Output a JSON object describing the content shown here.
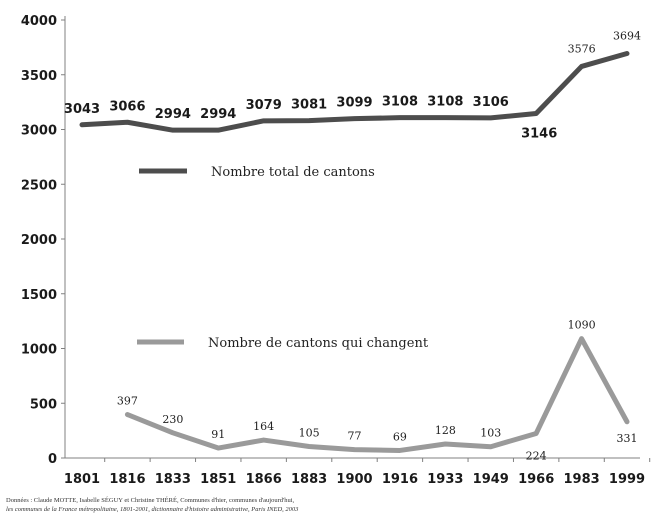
{
  "chart_data": {
    "type": "line",
    "x": [
      "1801",
      "1816",
      "1833",
      "1851",
      "1866",
      "1883",
      "1900",
      "1916",
      "1933",
      "1949",
      "1966",
      "1983",
      "1999"
    ],
    "series": [
      {
        "name": "Nombre total de cantons",
        "color": "#4d4d4d",
        "values": [
          3043,
          3066,
          2994,
          2994,
          3079,
          3081,
          3099,
          3108,
          3108,
          3106,
          3146,
          3576,
          3694
        ],
        "labels": [
          "3043",
          "3066",
          "2994",
          "2994",
          "3079",
          "3081",
          "3099",
          "3108",
          "3108",
          "3106",
          "3146",
          "3576",
          "3694"
        ]
      },
      {
        "name": "Nombre de cantons qui changent",
        "color": "#9a9a9a",
        "values": [
          null,
          397,
          230,
          91,
          164,
          105,
          77,
          69,
          128,
          103,
          224,
          1090,
          331
        ],
        "labels": [
          "",
          "397",
          "230",
          "91",
          "164",
          "105",
          "77",
          "69",
          "128",
          "103",
          "224",
          "1090",
          "331"
        ]
      }
    ],
    "y_ticks": [
      "0",
      "500",
      "1000",
      "1500",
      "2000",
      "2500",
      "3000",
      "3500",
      "4000"
    ],
    "ylim": [
      0,
      4000
    ],
    "title": "",
    "xlabel": "",
    "ylabel": "",
    "grid": false,
    "legend": "inline"
  },
  "source": {
    "line1": "Données : Claude MOTTE, Isabelle SÉGUY et Christine THÉRÉ, Communes d'hier, communes d'aujourd'hui,",
    "line2": "les communes de la France métropolitaine, 1801-2001, dictionnaire d'histoire administrative, Paris INED, 2003"
  }
}
